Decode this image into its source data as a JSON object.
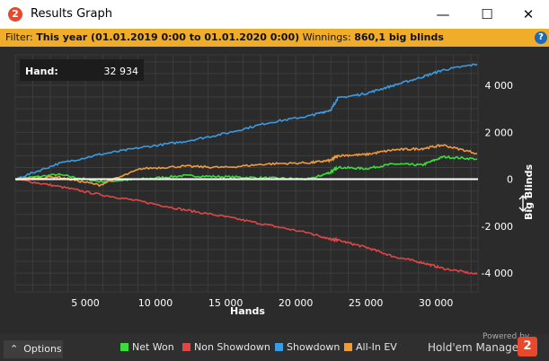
{
  "window": {
    "title": "Results Graph",
    "app_icon": "2",
    "minimize_glyph": "—",
    "maximize_glyph": "☐",
    "close_glyph": "✕"
  },
  "filter": {
    "label": "Filter:",
    "value": "This year (01.01.2019 0:00 to 01.01.2020 0:00)",
    "winnings_label": "Winnings:",
    "winnings_value": "860,1 big blinds"
  },
  "tooltip": {
    "label": "Hand:",
    "value": "32 934"
  },
  "footer": {
    "options_label": "Options",
    "powered_by": "Powered by",
    "brand": "Hold'em Manager",
    "brand_logo": "2"
  },
  "colors": {
    "net_won": "#3ddc3d",
    "non_showdown": "#e04646",
    "showdown": "#3b9ae0",
    "allin_ev": "#f09a3a",
    "background": "#2b2b2b",
    "grid": "#3d3d3d",
    "zero_line": "#ffffff"
  },
  "chart_data": {
    "type": "line",
    "xlabel": "Hands",
    "ylabel": "Big Blinds",
    "xlim": [
      0,
      33000
    ],
    "ylim": [
      -4800,
      5300
    ],
    "x_ticks": [
      5000,
      10000,
      15000,
      20000,
      25000,
      30000
    ],
    "x_tick_labels": [
      "5 000",
      "10 000",
      "15 000",
      "20 000",
      "25 000",
      "30 000"
    ],
    "y_ticks": [
      4000,
      2000,
      0,
      -2000,
      -4000
    ],
    "y_tick_labels": [
      "4 000",
      "2 000",
      "0",
      "-2 000",
      "-4 000"
    ],
    "grid": true,
    "legend_position": "bottom",
    "x": [
      0,
      3000,
      6000,
      9000,
      12000,
      15000,
      18000,
      21000,
      22500,
      23000,
      25000,
      27000,
      29000,
      30500,
      32934
    ],
    "series": [
      {
        "name": "Net Won",
        "key": "net_won",
        "values": [
          0,
          200,
          -100,
          0,
          150,
          100,
          50,
          0,
          300,
          500,
          450,
          650,
          600,
          950,
          860
        ]
      },
      {
        "name": "Non Showdown",
        "key": "non_showdown",
        "values": [
          0,
          -300,
          -650,
          -950,
          -1300,
          -1600,
          -1950,
          -2300,
          -2550,
          -2600,
          -2900,
          -3300,
          -3550,
          -3800,
          -4050
        ]
      },
      {
        "name": "Showdown",
        "key": "showdown",
        "values": [
          0,
          650,
          1050,
          1350,
          1600,
          1950,
          2400,
          2700,
          2950,
          3450,
          3650,
          4000,
          4350,
          4650,
          4900
        ]
      },
      {
        "name": "All-In EV",
        "key": "allin_ev",
        "values": [
          0,
          100,
          -250,
          450,
          550,
          500,
          650,
          700,
          800,
          1000,
          1050,
          1250,
          1300,
          1450,
          1100
        ]
      }
    ]
  }
}
